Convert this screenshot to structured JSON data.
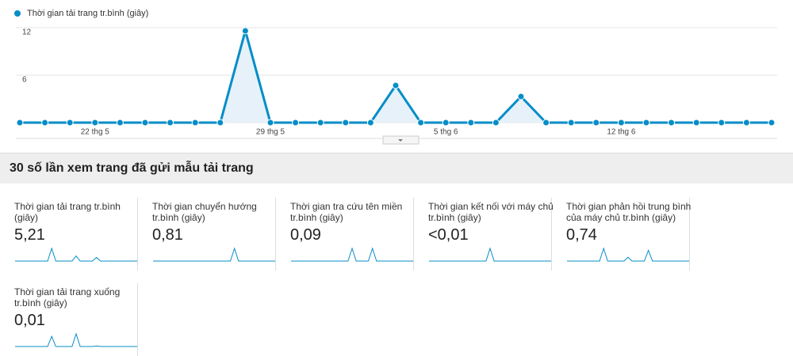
{
  "chart_data": {
    "type": "line",
    "categories": [
      null,
      null,
      null,
      "22 thg 5",
      null,
      null,
      null,
      null,
      null,
      null,
      "29 thg 5",
      null,
      null,
      null,
      null,
      null,
      null,
      "5 thg 6",
      null,
      null,
      null,
      null,
      null,
      null,
      "12 thg 6",
      null,
      null,
      null,
      null,
      null,
      null
    ],
    "series": [
      {
        "name": "Thời gian tải trang tr.bình (giây)",
        "color": "#058dc7",
        "values": [
          0,
          0,
          0,
          0,
          0,
          0,
          0,
          0,
          0,
          11.6,
          0,
          0,
          0,
          0,
          0,
          4.7,
          0,
          0,
          0,
          0,
          3.3,
          0,
          0,
          0,
          0,
          0,
          0,
          0,
          0,
          0,
          0
        ]
      }
    ],
    "ylim": [
      0,
      12
    ],
    "yticks": [
      6,
      12
    ],
    "grid": true,
    "area": true
  },
  "section_title": "30 số lần xem trang đã gửi mẫu tải trang",
  "metrics": [
    {
      "label": "Thời gian tải trang tr.bình (giây)",
      "value": "5,21",
      "trend": [
        0,
        0,
        0,
        0,
        0,
        0,
        0,
        0,
        0,
        11.6,
        0,
        0,
        0,
        0,
        0,
        4.7,
        0,
        0,
        0,
        0,
        3.3,
        0,
        0,
        0,
        0,
        0,
        0,
        0,
        0,
        0,
        0
      ]
    },
    {
      "label": "Thời gian chuyển hướng tr.bình (giây)",
      "value": "0,81",
      "trend": [
        0,
        0,
        0,
        0,
        0,
        0,
        0,
        0,
        0,
        0,
        0,
        0,
        0,
        0,
        0,
        0,
        0,
        0,
        0,
        0,
        2.4,
        0,
        0,
        0,
        0,
        0,
        0,
        0,
        0,
        0,
        0
      ]
    },
    {
      "label": "Thời gian tra cứu tên miền tr.bình (giây)",
      "value": "0,09",
      "trend": [
        0,
        0,
        0,
        0,
        0,
        0,
        0,
        0,
        0,
        0,
        0,
        0,
        0,
        0,
        0,
        0.5,
        0,
        0,
        0,
        0,
        0.5,
        0,
        0,
        0,
        0,
        0,
        0,
        0,
        0,
        0,
        0
      ]
    },
    {
      "label": "Thời gian kết nối với máy chủ tr.bình (giây)",
      "value": "<0,01",
      "trend": [
        0,
        0,
        0,
        0,
        0,
        0,
        0,
        0,
        0,
        0,
        0,
        0,
        0,
        0,
        0,
        0.2,
        0,
        0,
        0,
        0,
        0,
        0,
        0,
        0,
        0,
        0,
        0,
        0,
        0,
        0,
        0
      ]
    },
    {
      "label": "Thời gian phản hồi trung bình của máy chủ tr.bình (giây)",
      "value": "0,74",
      "trend": [
        0,
        0,
        0,
        0,
        0,
        0,
        0,
        0,
        0,
        2.0,
        0,
        0,
        0,
        0,
        0,
        0.6,
        0,
        0,
        0,
        0,
        1.7,
        0,
        0,
        0,
        0,
        0,
        0,
        0,
        0,
        0,
        0
      ]
    },
    {
      "label": "Thời gian tải trang xuống tr.bình (giây)",
      "value": "0,01",
      "trend": [
        0,
        0,
        0,
        0,
        0,
        0,
        0,
        0,
        0,
        0.2,
        0,
        0,
        0,
        0,
        0,
        0.25,
        0,
        0,
        0,
        0,
        0.01,
        0,
        0,
        0,
        0,
        0,
        0,
        0,
        0,
        0,
        0
      ]
    }
  ]
}
